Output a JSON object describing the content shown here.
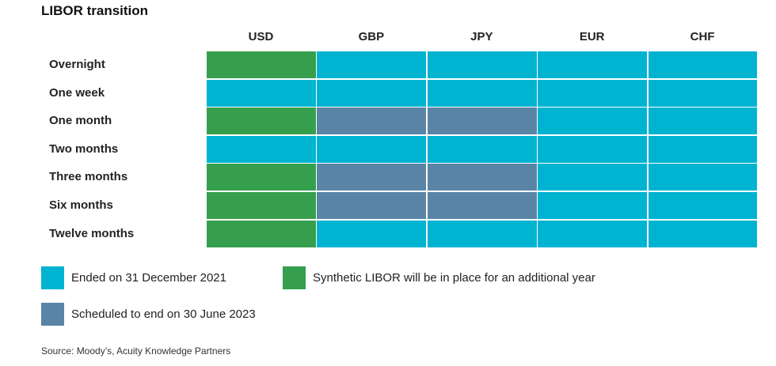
{
  "chart_data": {
    "type": "table",
    "title": "LIBOR transition",
    "columns": [
      "USD",
      "GBP",
      "JPY",
      "EUR",
      "CHF"
    ],
    "rows": [
      "Overnight",
      "One week",
      "One month",
      "Two months",
      "Three months",
      "Six months",
      "Twelve months"
    ],
    "status_grid": [
      [
        "synthetic",
        "ended",
        "ended",
        "ended",
        "ended"
      ],
      [
        "ended",
        "ended",
        "ended",
        "ended",
        "ended"
      ],
      [
        "synthetic",
        "scheduled",
        "scheduled",
        "ended",
        "ended"
      ],
      [
        "ended",
        "ended",
        "ended",
        "ended",
        "ended"
      ],
      [
        "synthetic",
        "scheduled",
        "scheduled",
        "ended",
        "ended"
      ],
      [
        "synthetic",
        "scheduled",
        "scheduled",
        "ended",
        "ended"
      ],
      [
        "synthetic",
        "ended",
        "ended",
        "ended",
        "ended"
      ]
    ],
    "legend": [
      {
        "key": "ended",
        "label": "Ended on 31 December 2021",
        "color": "#00b3d1"
      },
      {
        "key": "synthetic",
        "label": "Synthetic LIBOR will be in place for an additional year",
        "color": "#359f4d"
      },
      {
        "key": "scheduled",
        "label": "Scheduled to end on 30 June 2023",
        "color": "#5a84a6"
      }
    ],
    "source": "Source: Moody’s, Acuity Knowledge Partners"
  }
}
